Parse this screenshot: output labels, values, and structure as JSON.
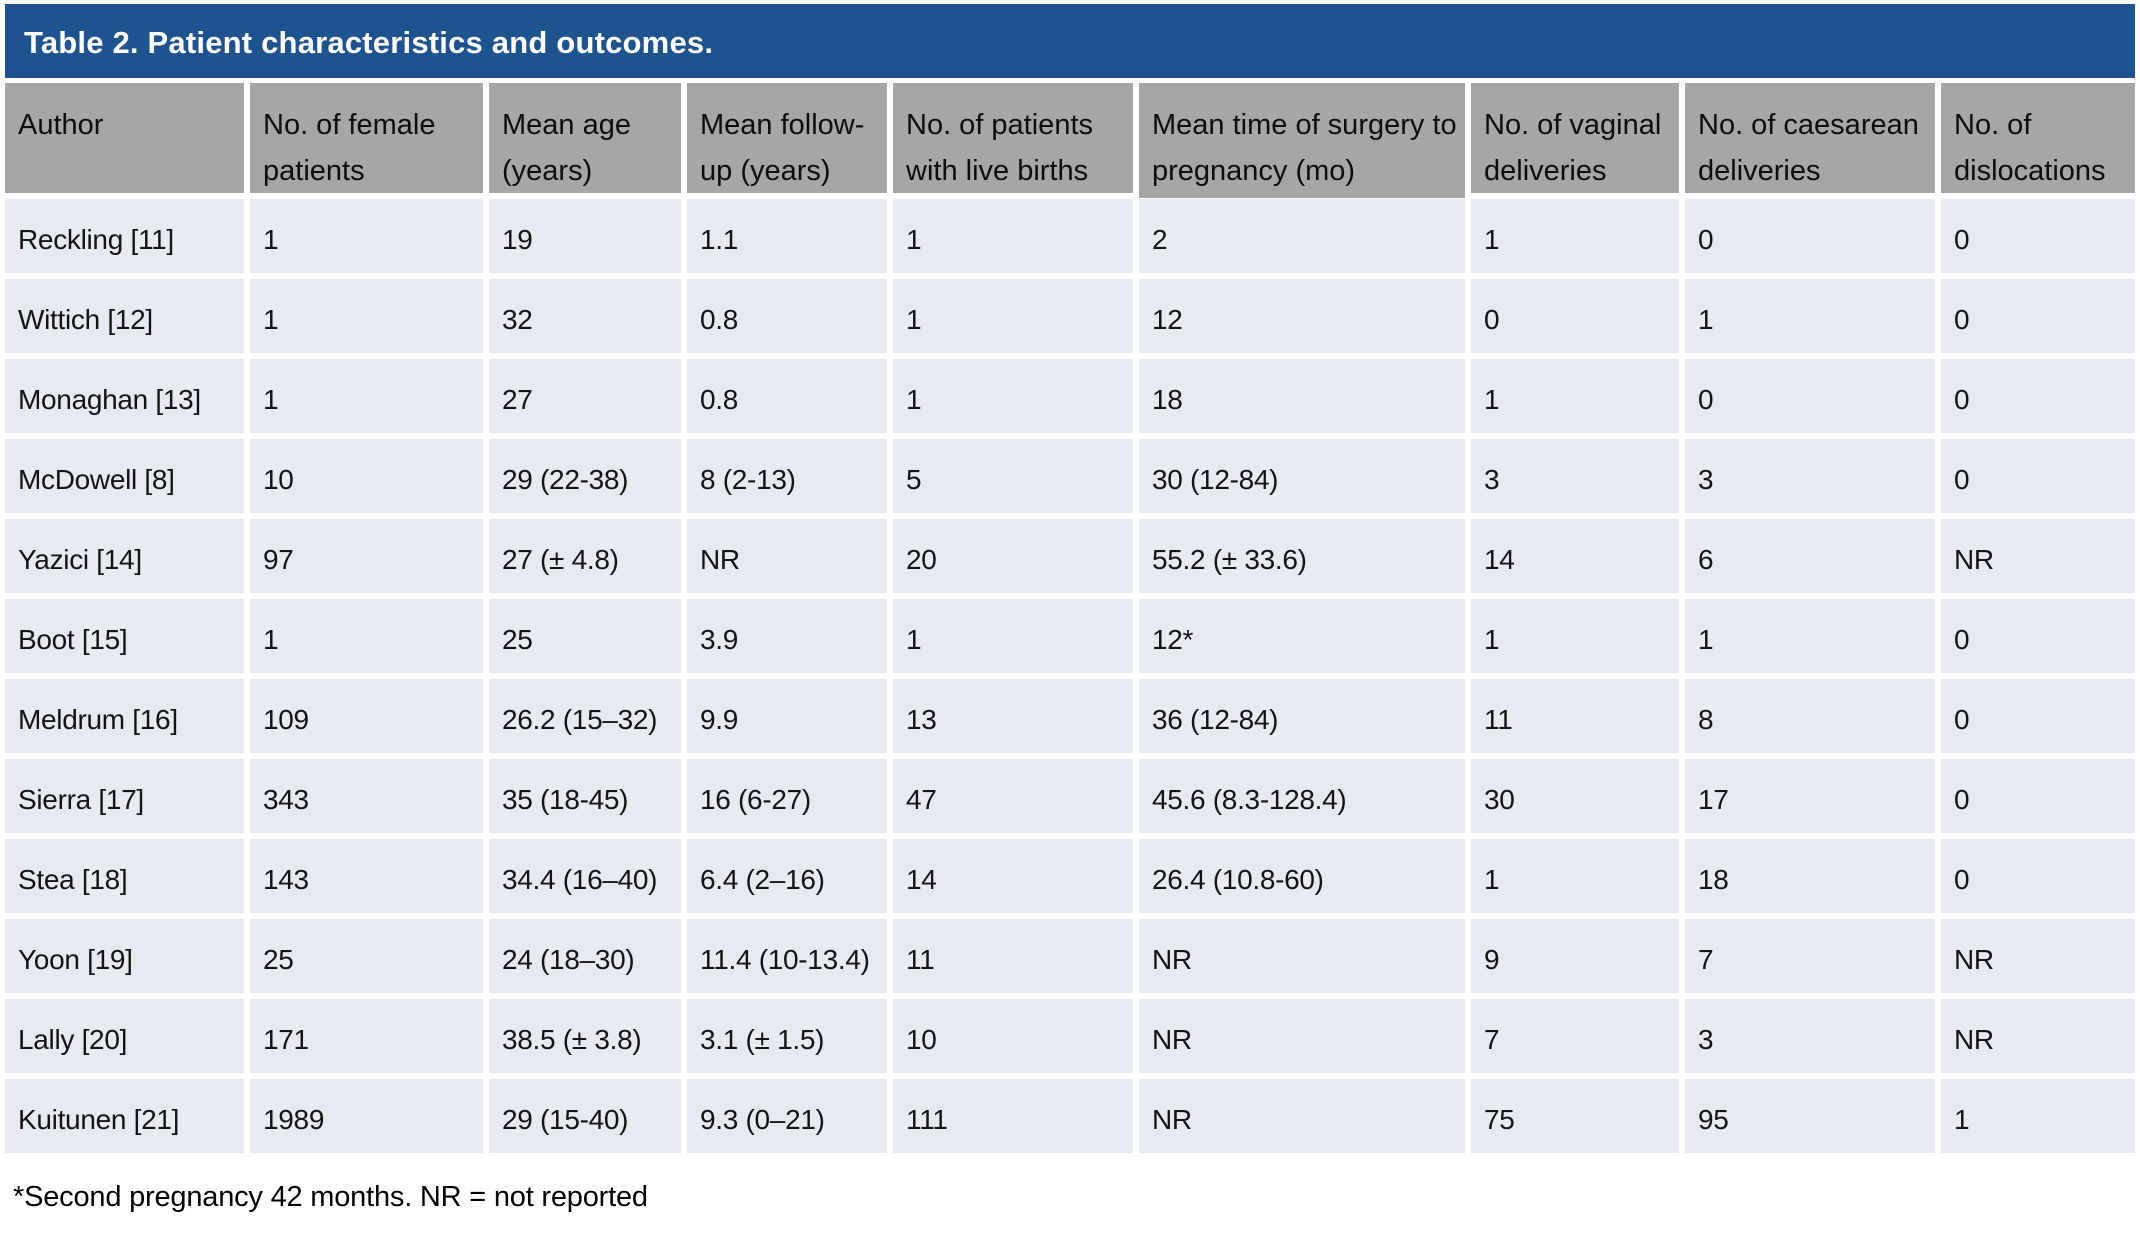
{
  "table": {
    "title": "Table 2. Patient characteristics and outcomes.",
    "columns": [
      "Author",
      "No. of female patients",
      "Mean age (years)",
      "Mean follow-up (years)",
      "No. of patients with live births",
      "Mean time of surgery to pregnancy (mo)",
      "No. of vaginal deliveries",
      "No. of caesarean deliveries",
      "No. of dislocations"
    ],
    "rows": [
      [
        "Reckling [11]",
        "1",
        "19",
        "1.1",
        "1",
        "2",
        "1",
        "0",
        "0"
      ],
      [
        "Wittich [12]",
        "1",
        "32",
        "0.8",
        "1",
        "12",
        "0",
        "1",
        "0"
      ],
      [
        "Monaghan [13]",
        "1",
        "27",
        "0.8",
        "1",
        "18",
        "1",
        "0",
        "0"
      ],
      [
        "McDowell [8]",
        "10",
        "29 (22-38)",
        "8 (2-13)",
        "5",
        "30 (12-84)",
        "3",
        "3",
        "0"
      ],
      [
        "Yazici [14]",
        "97",
        "27 (± 4.8)",
        "NR",
        "20",
        "55.2 (± 33.6)",
        "14",
        "6",
        "NR"
      ],
      [
        "Boot [15]",
        "1",
        "25",
        "3.9",
        "1",
        "12*",
        "1",
        "1",
        "0"
      ],
      [
        "Meldrum [16]",
        "109",
        "26.2 (15–32)",
        "9.9",
        "13",
        "36 (12-84)",
        "11",
        "8",
        "0"
      ],
      [
        "Sierra [17]",
        "343",
        "35 (18-45)",
        "16 (6-27)",
        "47",
        "45.6 (8.3-128.4)",
        "30",
        "17",
        "0"
      ],
      [
        "Stea [18]",
        "143",
        "34.4 (16–40)",
        "6.4 (2–16)",
        "14",
        "26.4 (10.8-60)",
        "1",
        "18",
        "0"
      ],
      [
        "Yoon [19]",
        "25",
        "24 (18–30)",
        "11.4 (10-13.4)",
        "11",
        "NR",
        "9",
        "7",
        "NR"
      ],
      [
        "Lally [20]",
        "171",
        "38.5 (± 3.8)",
        "3.1 (± 1.5)",
        "10",
        "NR",
        "7",
        "3",
        "NR"
      ],
      [
        "Kuitunen [21]",
        "1989",
        "29 (15-40)",
        "9.3 (0–21)",
        "111",
        "NR",
        "75",
        "95",
        "1"
      ]
    ],
    "footnote": "*Second pregnancy 42 months. NR = not reported"
  },
  "colors": {
    "title_bar": "#1F538F",
    "header_bg": "#A6A6A6",
    "row_bg": "#E7EAF1",
    "gap": "#FFFFFF"
  }
}
